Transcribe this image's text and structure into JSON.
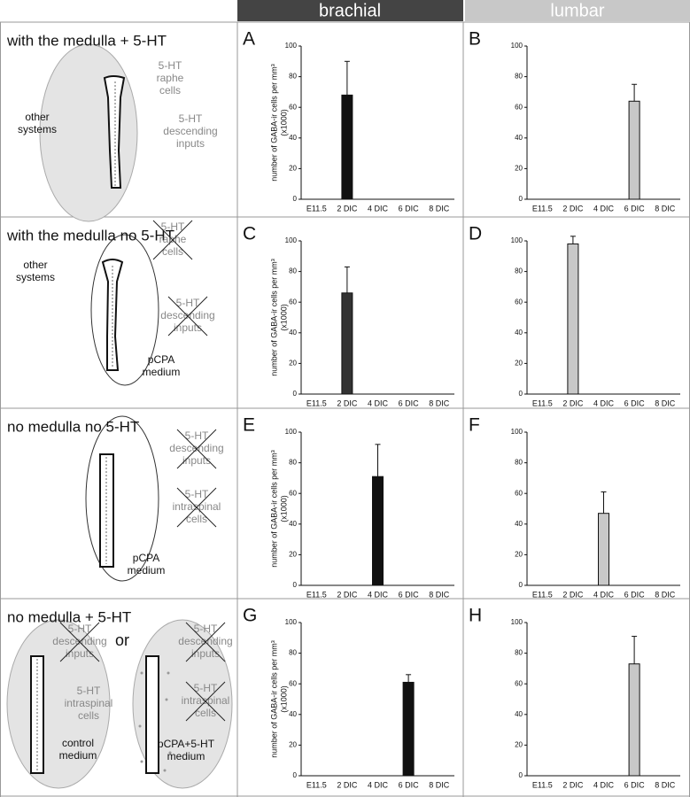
{
  "columns": [
    "brachial",
    "lumbar"
  ],
  "rows": [
    {
      "label": "with the medulla  + 5-HT",
      "notes": [
        {
          "lines": [
            "other",
            "systems"
          ],
          "crossed": false,
          "gray": false
        },
        {
          "lines": [
            "5-HT",
            "raphe",
            "cells"
          ],
          "crossed": false,
          "gray": true
        },
        {
          "lines": [
            "5-HT",
            "descending",
            "inputs"
          ],
          "crossed": false,
          "gray": true
        }
      ]
    },
    {
      "label": "with the medulla  no 5-HT",
      "notes": [
        {
          "lines": [
            "other",
            "systems"
          ],
          "crossed": false,
          "gray": false
        },
        {
          "lines": [
            "5-HT",
            "raphe",
            "cells"
          ],
          "crossed": true,
          "gray": true
        },
        {
          "lines": [
            "5-HT",
            "descending",
            "inputs"
          ],
          "crossed": true,
          "gray": true
        },
        {
          "lines": [
            "pCPA",
            "medium"
          ],
          "crossed": false,
          "gray": false
        }
      ]
    },
    {
      "label": "no medulla  no 5-HT",
      "notes": [
        {
          "lines": [
            "5-HT",
            "descending",
            "inputs"
          ],
          "crossed": true,
          "gray": true
        },
        {
          "lines": [
            "5-HT",
            "intraspinal",
            "cells"
          ],
          "crossed": true,
          "gray": true
        },
        {
          "lines": [
            "pCPA",
            "medium"
          ],
          "crossed": false,
          "gray": false
        }
      ]
    },
    {
      "label": "no medulla  + 5-HT",
      "notes": [
        {
          "lines": [
            "5-HT",
            "descending",
            "inputs"
          ],
          "crossed": true,
          "gray": true
        },
        {
          "lines": [
            "or"
          ],
          "crossed": false,
          "gray": false
        },
        {
          "lines": [
            "5-HT",
            "intraspinal",
            "cells"
          ],
          "crossed": false,
          "gray": true
        },
        {
          "lines": [
            "control",
            "medium"
          ],
          "crossed": false,
          "gray": false
        },
        {
          "lines": [
            "5-HT",
            "descending",
            "inputs"
          ],
          "crossed": true,
          "gray": true
        },
        {
          "lines": [
            "5-HT",
            "intraspinal",
            "cells"
          ],
          "crossed": true,
          "gray": true
        },
        {
          "lines": [
            "pCPA+5-HT",
            "medium"
          ],
          "crossed": false,
          "gray": false
        }
      ]
    }
  ],
  "chart_data": [
    {
      "type": "bar",
      "panel": "A",
      "ylabel": [
        "number of GABA-ir cells per mm³",
        "(x1000)"
      ],
      "categories": [
        "E11.5",
        "2 DIC",
        "4 DIC",
        "6 DIC",
        "8 DIC"
      ],
      "values": [
        null,
        68,
        null,
        null,
        null
      ],
      "errors": [
        null,
        22,
        null,
        null,
        null
      ],
      "color": "#111111",
      "ylim": [
        0,
        100
      ],
      "yticks": [
        0,
        20,
        40,
        60,
        80,
        100
      ]
    },
    {
      "type": "bar",
      "panel": "B",
      "categories": [
        "E11.5",
        "2 DIC",
        "4 DIC",
        "6 DIC",
        "8 DIC"
      ],
      "values": [
        null,
        null,
        null,
        64,
        null
      ],
      "errors": [
        null,
        null,
        null,
        11,
        null
      ],
      "color": "#c8c8c8",
      "ylim": [
        0,
        100
      ],
      "yticks": [
        0,
        20,
        40,
        60,
        80,
        100
      ]
    },
    {
      "type": "bar",
      "panel": "C",
      "ylabel": [
        "number of GABA-ir cells per mm³",
        "(x1000)"
      ],
      "categories": [
        "E11.5",
        "2 DIC",
        "4 DIC",
        "6 DIC",
        "8 DIC"
      ],
      "values": [
        null,
        66,
        null,
        null,
        null
      ],
      "errors": [
        null,
        17,
        null,
        null,
        null
      ],
      "color": "#333333",
      "ylim": [
        0,
        100
      ],
      "yticks": [
        0,
        20,
        40,
        60,
        80,
        100
      ]
    },
    {
      "type": "bar",
      "panel": "D",
      "categories": [
        "E11.5",
        "2 DIC",
        "4 DIC",
        "6 DIC",
        "8 DIC"
      ],
      "values": [
        null,
        98,
        null,
        null,
        null
      ],
      "errors": [
        null,
        5,
        null,
        null,
        null
      ],
      "color": "#c8c8c8",
      "ylim": [
        0,
        100
      ],
      "yticks": [
        0,
        20,
        40,
        60,
        80,
        100
      ]
    },
    {
      "type": "bar",
      "panel": "E",
      "ylabel": [
        "number of GABA-ir cells per mm³",
        "(x1000)"
      ],
      "categories": [
        "E11.5",
        "2 DIC",
        "4 DIC",
        "6 DIC",
        "8 DIC"
      ],
      "values": [
        null,
        null,
        71,
        null,
        null
      ],
      "errors": [
        null,
        null,
        21,
        null,
        null
      ],
      "color": "#111111",
      "ylim": [
        0,
        100
      ],
      "yticks": [
        0,
        20,
        40,
        60,
        80,
        100
      ]
    },
    {
      "type": "bar",
      "panel": "F",
      "categories": [
        "E11.5",
        "2 DIC",
        "4 DIC",
        "6 DIC",
        "8 DIC"
      ],
      "values": [
        null,
        null,
        47,
        null,
        null
      ],
      "errors": [
        null,
        null,
        14,
        null,
        null
      ],
      "color": "#c8c8c8",
      "ylim": [
        0,
        100
      ],
      "yticks": [
        0,
        20,
        40,
        60,
        80,
        100
      ]
    },
    {
      "type": "bar",
      "panel": "G",
      "ylabel": [
        "number of GABA-ir cells per mm³",
        "(x1000)"
      ],
      "categories": [
        "E11.5",
        "2 DIC",
        "4 DIC",
        "6 DIC",
        "8 DIC"
      ],
      "values": [
        null,
        null,
        null,
        61,
        null
      ],
      "errors": [
        null,
        null,
        null,
        5,
        null
      ],
      "color": "#111111",
      "ylim": [
        0,
        100
      ],
      "yticks": [
        0,
        20,
        40,
        60,
        80,
        100
      ]
    },
    {
      "type": "bar",
      "panel": "H",
      "categories": [
        "E11.5",
        "2 DIC",
        "4 DIC",
        "6 DIC",
        "8 DIC"
      ],
      "values": [
        null,
        null,
        null,
        73,
        null
      ],
      "errors": [
        null,
        null,
        null,
        18,
        null
      ],
      "color": "#c8c8c8",
      "ylim": [
        0,
        100
      ],
      "yticks": [
        0,
        20,
        40,
        60,
        80,
        100
      ]
    }
  ]
}
